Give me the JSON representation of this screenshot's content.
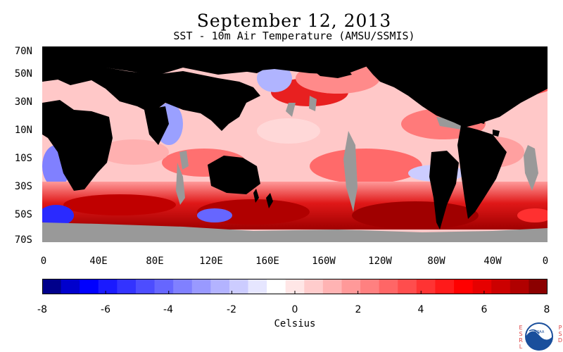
{
  "title": "September 12, 2013",
  "subtitle": "SST - 10m Air Temperature (AMSU/SSMIS)",
  "map": {
    "latitude_labels": [
      "70N",
      "50N",
      "30N",
      "10N",
      "10S",
      "30S",
      "50S",
      "70S"
    ],
    "longitude_labels": [
      "0",
      "40E",
      "80E",
      "120E",
      "160E",
      "160W",
      "120W",
      "80W",
      "40W",
      "0"
    ],
    "land_color": "#000000",
    "missing_data_color": "#999999"
  },
  "colorbar": {
    "label": "Celsius",
    "tick_labels": [
      "-8",
      "-6",
      "-4",
      "-2",
      "0",
      "2",
      "4",
      "6",
      "8"
    ],
    "range": [
      -8,
      8
    ],
    "colors": [
      "#00008b",
      "#0000cd",
      "#0000ff",
      "#1a1aff",
      "#3333ff",
      "#4d4dff",
      "#6666ff",
      "#8080ff",
      "#9999ff",
      "#b3b3ff",
      "#ccccff",
      "#e6e6ff",
      "#ffffff",
      "#ffe6e6",
      "#ffcccc",
      "#ffb3b3",
      "#ff9999",
      "#ff8080",
      "#ff6666",
      "#ff4d4d",
      "#ff3333",
      "#ff1a1a",
      "#ff0000",
      "#e60000",
      "#cc0000",
      "#b00000",
      "#8b0000"
    ]
  },
  "logo": {
    "left_letters": [
      "E",
      "S",
      "R",
      "L"
    ],
    "right_letters": [
      "P",
      "S",
      "D"
    ],
    "badge_text": "NOAA"
  }
}
